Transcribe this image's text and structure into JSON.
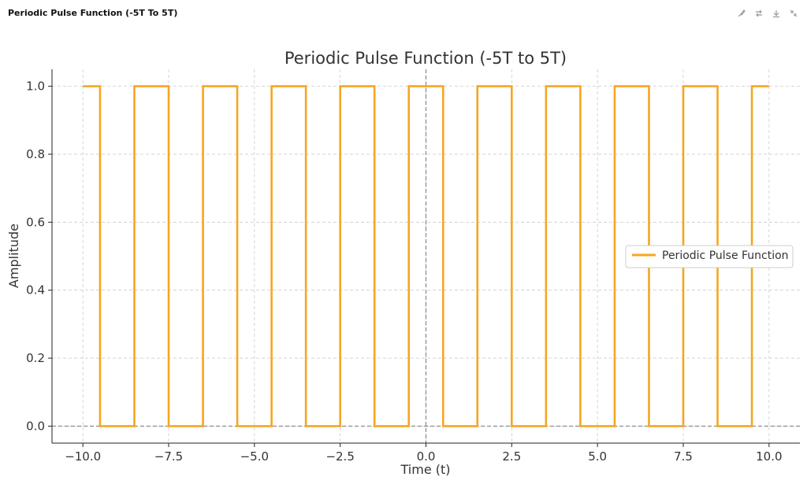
{
  "app": {
    "title": "Periodic Pulse Function (-5T To 5T)"
  },
  "toolbar": {
    "icons": [
      "brush-icon",
      "compare-icon",
      "download-icon",
      "collapse-icon"
    ]
  },
  "colors": {
    "series": "#f5a623",
    "axis": "#222222",
    "grid": "#cccccc",
    "zero_line": "#777777",
    "text": "#333333"
  },
  "chart_data": {
    "type": "line",
    "title": "Periodic Pulse Function (-5T to 5T)",
    "xlabel": "Time (t)",
    "ylabel": "Amplitude",
    "xlim": [
      -10.9,
      10.9
    ],
    "ylim": [
      -0.05,
      1.05
    ],
    "xticks": [
      -10.0,
      -7.5,
      -5.0,
      -2.5,
      0.0,
      2.5,
      5.0,
      7.5,
      10.0
    ],
    "xtick_labels": [
      "−10.0",
      "−7.5",
      "−5.0",
      "−2.5",
      "0.0",
      "2.5",
      "5.0",
      "7.5",
      "10.0"
    ],
    "yticks": [
      0.0,
      0.2,
      0.4,
      0.6,
      0.8,
      1.0
    ],
    "ytick_labels": [
      "0.0",
      "0.2",
      "0.4",
      "0.6",
      "0.8",
      "1.0"
    ],
    "grid": true,
    "legend_position": "center-right",
    "series": [
      {
        "name": "Periodic Pulse Function",
        "color": "#f5a623",
        "x": [
          -10.0,
          -9.5,
          -9.5,
          -8.5,
          -8.5,
          -7.5,
          -7.5,
          -6.5,
          -6.5,
          -5.5,
          -5.5,
          -4.5,
          -4.5,
          -3.5,
          -3.5,
          -2.5,
          -2.5,
          -1.5,
          -1.5,
          -0.5,
          -0.5,
          0.5,
          0.5,
          1.5,
          1.5,
          2.5,
          2.5,
          3.5,
          3.5,
          4.5,
          4.5,
          5.5,
          5.5,
          6.5,
          6.5,
          7.5,
          7.5,
          8.5,
          8.5,
          9.5,
          9.5,
          10.0
        ],
        "y": [
          1,
          1,
          0,
          0,
          1,
          1,
          0,
          0,
          1,
          1,
          0,
          0,
          1,
          1,
          0,
          0,
          1,
          1,
          0,
          0,
          1,
          1,
          0,
          0,
          1,
          1,
          0,
          0,
          1,
          1,
          0,
          0,
          1,
          1,
          0,
          0,
          1,
          1,
          0,
          0,
          1,
          1
        ]
      }
    ]
  }
}
